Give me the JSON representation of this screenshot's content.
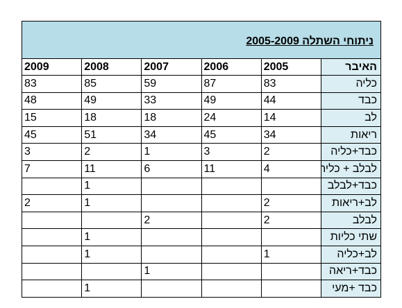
{
  "table": {
    "title": "ניתוחי השתלה 2005-2009",
    "header": [
      "האיבר",
      2005,
      2006,
      2007,
      2008,
      2009
    ],
    "rows": [
      [
        "כליה",
        83,
        87,
        59,
        85,
        83
      ],
      [
        "כבד",
        44,
        49,
        33,
        49,
        48
      ],
      [
        "לב",
        14,
        24,
        18,
        18,
        15
      ],
      [
        "ריאות",
        34,
        45,
        34,
        51,
        45
      ],
      [
        "כבד+כליה",
        2,
        3,
        1,
        2,
        3
      ],
      [
        "לבלב + כליה",
        4,
        11,
        6,
        11,
        7
      ],
      [
        "כבד+לבלב",
        null,
        null,
        null,
        1,
        null
      ],
      [
        "לב+ריאות",
        2,
        null,
        null,
        1,
        2
      ],
      [
        "לבלב",
        2,
        null,
        2,
        null,
        null
      ],
      [
        "שתי כליות",
        null,
        null,
        null,
        1,
        null
      ],
      [
        "לב+כליה",
        1,
        null,
        null,
        1,
        null
      ],
      [
        "כבד+ריאה",
        null,
        null,
        1,
        null,
        null
      ],
      [
        "כבד +מעי",
        null,
        null,
        null,
        1,
        null
      ]
    ]
  }
}
